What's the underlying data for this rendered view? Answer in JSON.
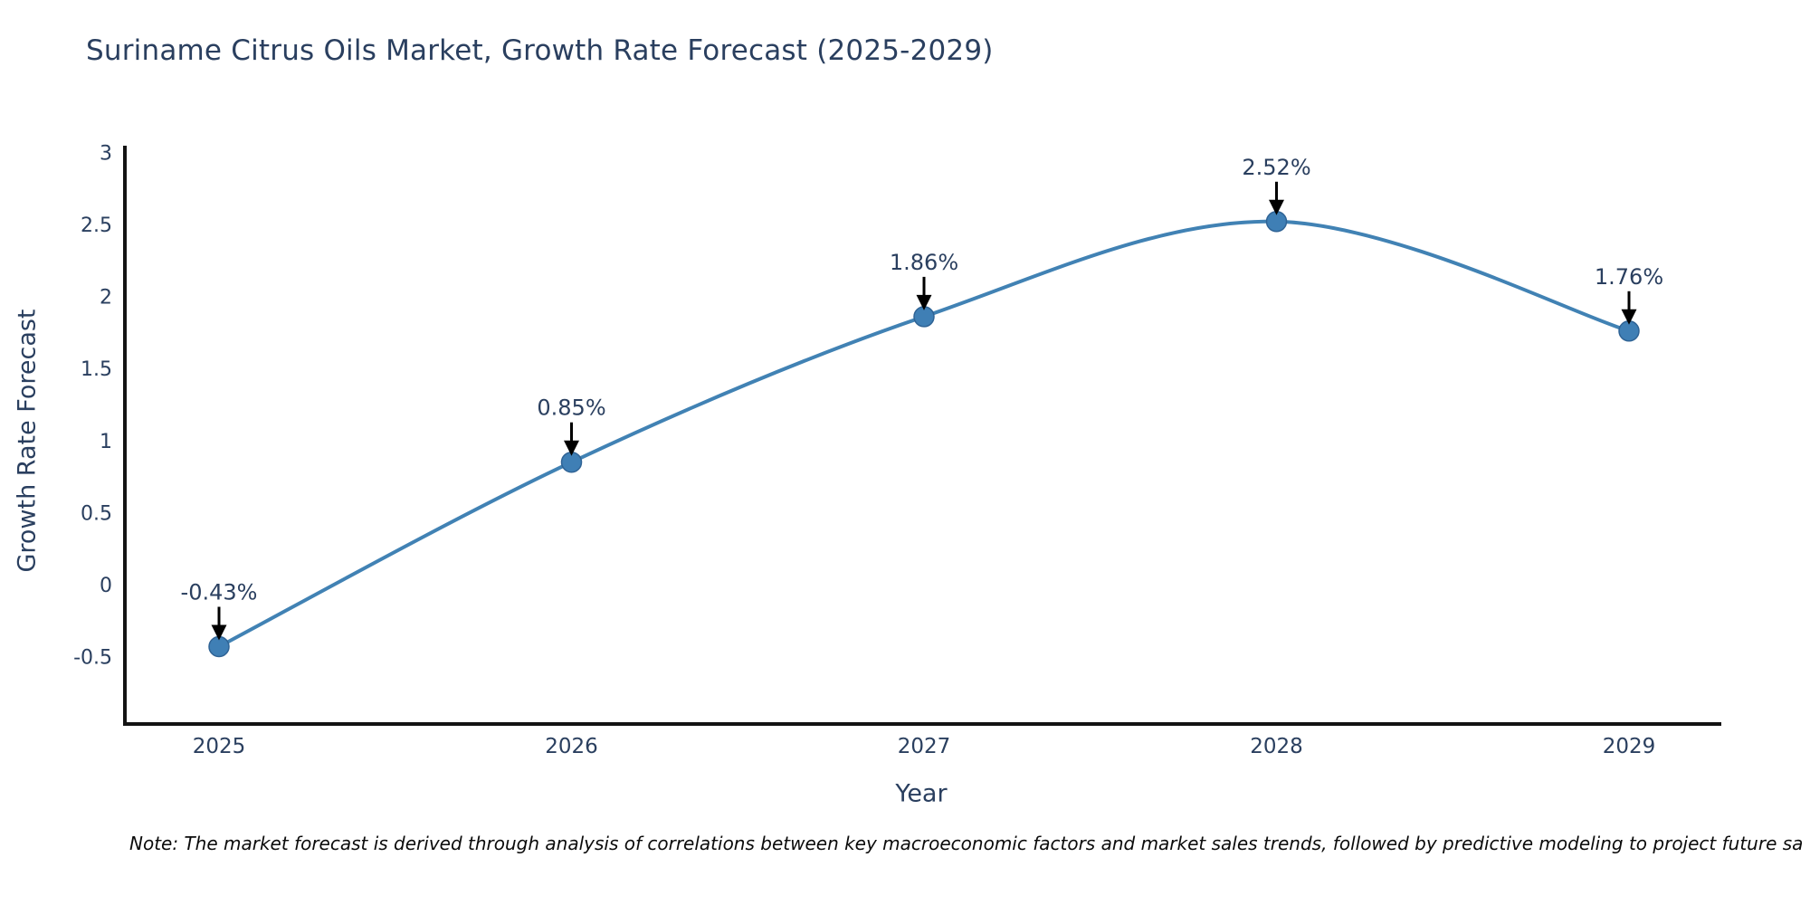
{
  "chart_data": {
    "type": "line",
    "title": "Suriname Citrus Oils Market, Growth Rate Forecast (2025-2029)",
    "xlabel": "Year",
    "ylabel": "Growth Rate Forecast",
    "categories": [
      "2025",
      "2026",
      "2027",
      "2028",
      "2029"
    ],
    "values": [
      -0.43,
      0.85,
      1.86,
      2.52,
      1.76
    ],
    "point_labels": [
      "-0.43%",
      "0.85%",
      "1.86%",
      "2.52%",
      "1.76%"
    ],
    "yticks": [
      3,
      2.5,
      2,
      1.5,
      1,
      0.5,
      0,
      -0.5
    ],
    "ylim": [
      -1.0,
      3.05
    ],
    "grid": false,
    "legend": false,
    "smooth": true,
    "colors": {
      "line": "#4182b4",
      "marker_fill": "#3f7fb5",
      "marker_stroke": "#2f6395",
      "axis_line": "#131313",
      "tick_text": "#2a3f5f",
      "annotation_text": "#2a3f5f",
      "arrow": "#000000",
      "title_text": "#2a3f5f",
      "note_text": "#0b0b0b",
      "background": "#ffffff"
    }
  },
  "note": {
    "text": "Note: The market forecast is derived through analysis of correlations between key macroeconomic factors and market sales trends, followed by predictive modeling to project future sa"
  }
}
